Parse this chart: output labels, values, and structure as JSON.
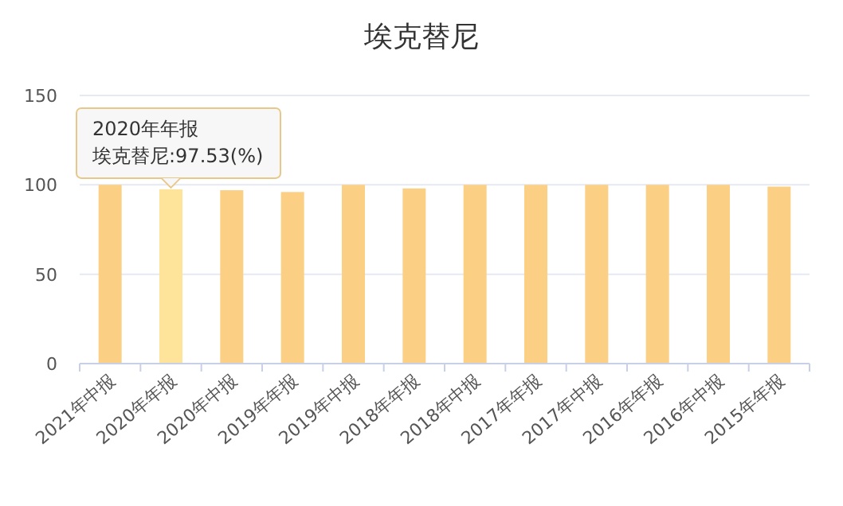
{
  "chart_data": {
    "type": "bar",
    "title": "埃克替尼",
    "categories": [
      "2021年中报",
      "2020年年报",
      "2020年中报",
      "2019年年报",
      "2019年中报",
      "2018年年报",
      "2018年中报",
      "2017年年报",
      "2017年中报",
      "2016年年报",
      "2016年中报",
      "2015年年报"
    ],
    "values": [
      100,
      97.53,
      97,
      96,
      100,
      98,
      100,
      100,
      100,
      100,
      100,
      99
    ],
    "colors": [
      "#fbd084",
      "#fde49a",
      "#fbd084",
      "#fbd084",
      "#fbd084",
      "#fbd084",
      "#fbd084",
      "#fbd084",
      "#fbd084",
      "#fbd084",
      "#fbd084",
      "#fbd084"
    ],
    "ylim": [
      0,
      150
    ],
    "yticks": [
      0,
      50,
      100,
      150
    ],
    "grid": "y",
    "annotations": [
      "2020年年报",
      {
        "text": "埃克替尼:97.53(%)",
        "x": "2020年年报",
        "y": 97.53
      }
    ]
  }
}
